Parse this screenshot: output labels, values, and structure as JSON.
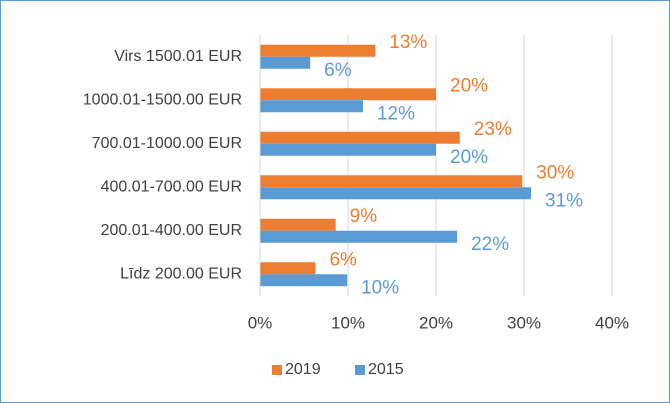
{
  "chart_data": {
    "type": "barh",
    "categories": [
      "Virs 1500.01 EUR",
      "1000.01-1500.00 EUR",
      "700.01-1000.00 EUR",
      "400.01-700.00 EUR",
      "200.01-400.00 EUR",
      "Līdz 200.00 EUR"
    ],
    "series": [
      {
        "name": "2019",
        "color": "#ed7d31",
        "values": [
          13.1,
          20,
          22.7,
          29.8,
          8.6,
          6.3
        ],
        "value_labels": [
          "13%",
          "20%",
          "23%",
          "30%",
          "9%",
          "6%"
        ]
      },
      {
        "name": "2015",
        "color": "#5b9bd5",
        "values": [
          5.7,
          11.7,
          20,
          30.8,
          22.4,
          9.9
        ],
        "value_labels": [
          "6%",
          "12%",
          "20%",
          "31%",
          "22%",
          "10%"
        ]
      }
    ],
    "xlim": [
      0,
      40
    ],
    "xticks": [
      {
        "value": 0,
        "label": "0%"
      },
      {
        "value": 10,
        "label": "10%"
      },
      {
        "value": 20,
        "label": "20%"
      },
      {
        "value": 30,
        "label": "30%"
      },
      {
        "value": 40,
        "label": "40%"
      }
    ],
    "grid": true,
    "legend": "bottom"
  }
}
